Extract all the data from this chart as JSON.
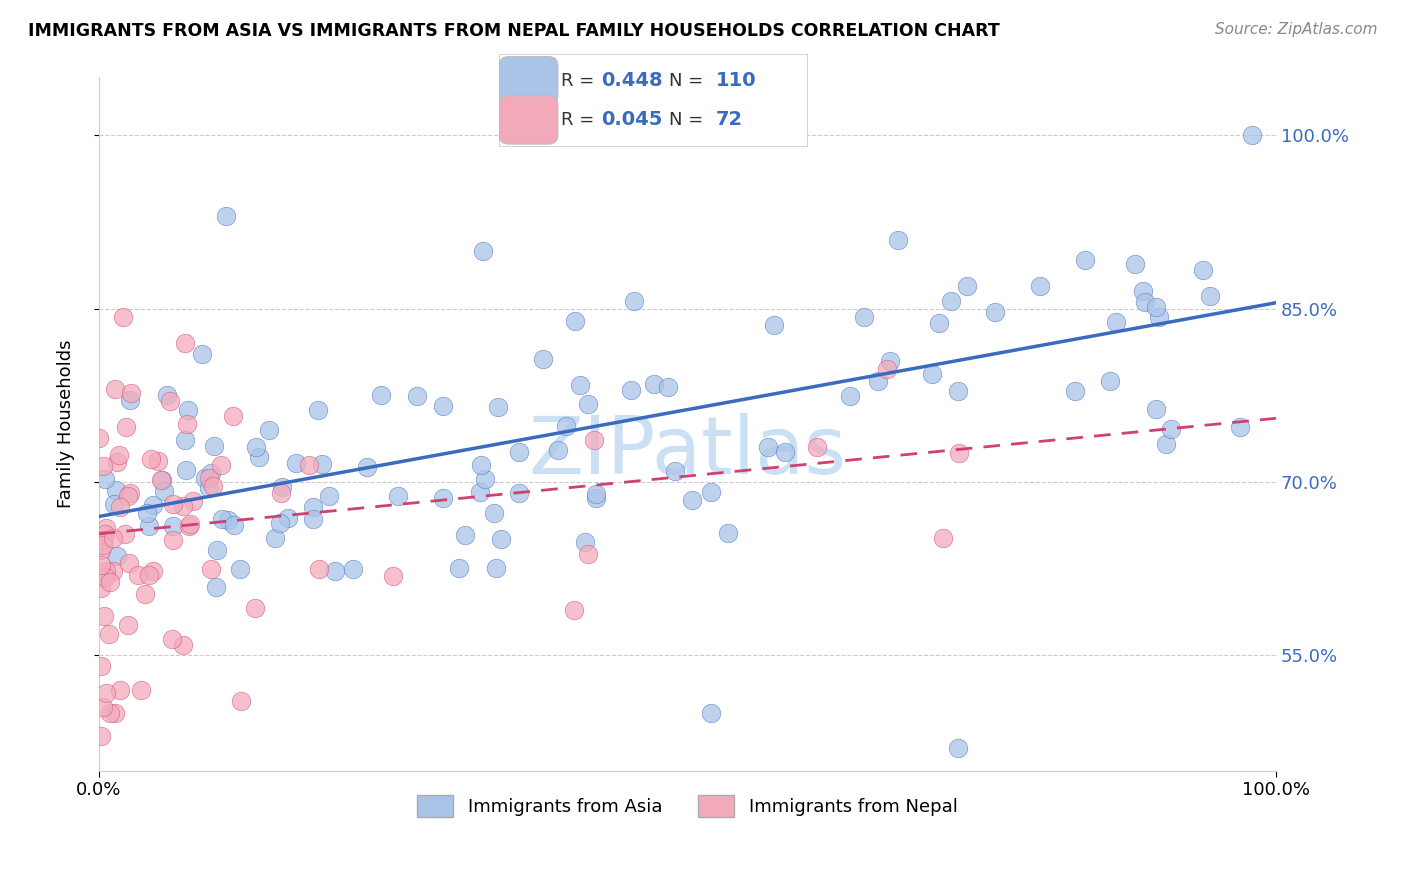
{
  "title": "IMMIGRANTS FROM ASIA VS IMMIGRANTS FROM NEPAL FAMILY HOUSEHOLDS CORRELATION CHART",
  "source": "Source: ZipAtlas.com",
  "ylabel": "Family Households",
  "legend1_label": "Immigrants from Asia",
  "legend2_label": "Immigrants from Nepal",
  "R1": 0.448,
  "N1": 110,
  "R2": 0.045,
  "N2": 72,
  "color_asia": "#aac4e8",
  "color_nepal": "#f2aabb",
  "line_color_asia": "#3a6bbf",
  "line_color_nepal": "#d04070",
  "watermark": "ZIPatlas",
  "watermark_color": "#cce0f5",
  "asia_line_start_y": 67.0,
  "asia_line_end_y": 85.5,
  "nepal_line_start_y": 65.5,
  "nepal_line_end_y": 75.5,
  "y_min": 45,
  "y_max": 105,
  "x_min": 0,
  "x_max": 100
}
